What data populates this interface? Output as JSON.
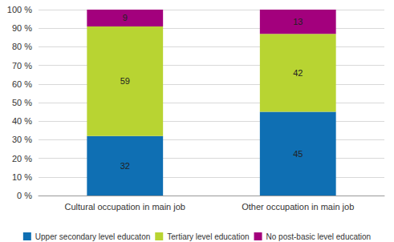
{
  "chart_data": {
    "type": "bar",
    "stacked": true,
    "grid": true,
    "data_labels": true,
    "legend": "bottom",
    "categories": [
      "Cultural occupation in main job",
      "Other occupation in main job"
    ],
    "series": [
      {
        "name": "Upper secondary level educaton",
        "color": "#0f6fb3",
        "values": [
          32,
          45
        ]
      },
      {
        "name": "Tertiary level education",
        "color": "#b8d432",
        "values": [
          59,
          42
        ]
      },
      {
        "name": "No post-basic level education",
        "color": "#a3007d",
        "values": [
          9,
          13
        ]
      }
    ],
    "ylim": [
      0,
      100
    ],
    "yticks": [
      {
        "value": 0,
        "label": "0 %"
      },
      {
        "value": 10,
        "label": "10 %"
      },
      {
        "value": 20,
        "label": "20 %"
      },
      {
        "value": 30,
        "label": "30 %"
      },
      {
        "value": 40,
        "label": "40 %"
      },
      {
        "value": 50,
        "label": "50 %"
      },
      {
        "value": 60,
        "label": "60 %"
      },
      {
        "value": 70,
        "label": "70 %"
      },
      {
        "value": 80,
        "label": "80 %"
      },
      {
        "value": 90,
        "label": "90 %"
      },
      {
        "value": 100,
        "label": "100 %"
      }
    ]
  }
}
